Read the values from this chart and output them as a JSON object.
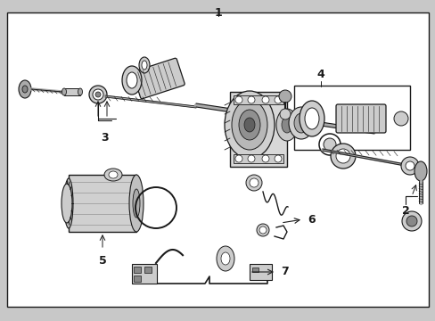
{
  "bg_color": "#c8c8c8",
  "box_bg": "#e8e8e8",
  "white": "#ffffff",
  "dark": "#1a1a1a",
  "gray1": "#888888",
  "gray2": "#aaaaaa",
  "gray3": "#cccccc",
  "label1": "1",
  "label2": "2",
  "label3": "3",
  "label4": "4",
  "label5": "5",
  "label6": "6",
  "label7": "7"
}
